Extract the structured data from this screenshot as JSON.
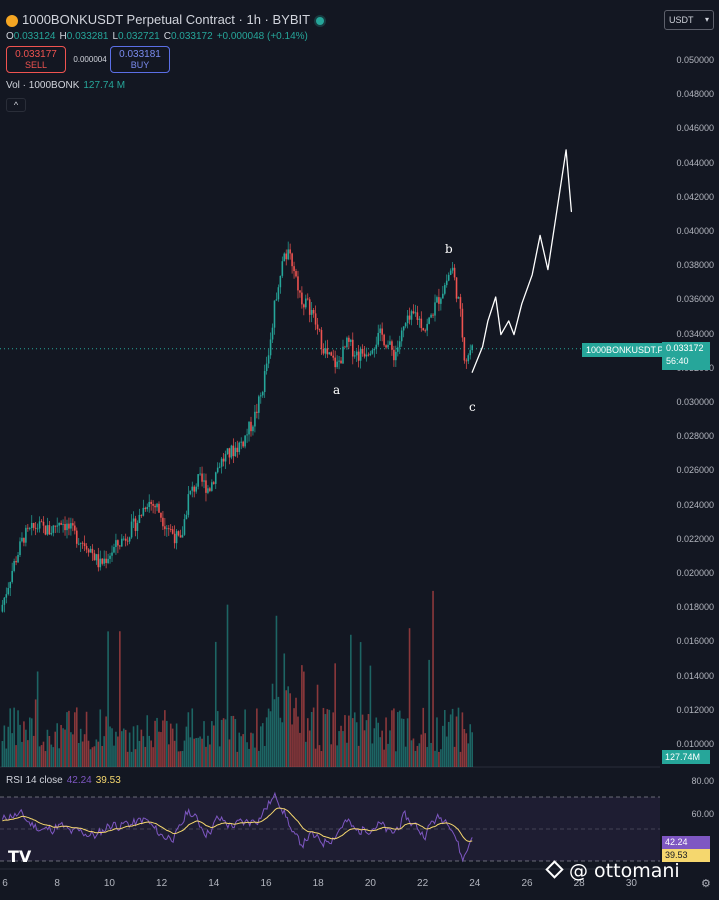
{
  "header": {
    "title": "1000BONKUSDT Perpetual Contract · 1h · BYBIT",
    "ohlc": [
      {
        "k": "O",
        "v": "0.033124"
      },
      {
        "k": "H",
        "v": "0.033281"
      },
      {
        "k": "L",
        "v": "0.032721"
      },
      {
        "k": "C",
        "v": "0.033172"
      },
      {
        "k": "",
        "v": "+0.000048 (+0.14%)"
      }
    ],
    "sell_price": "0.033177",
    "sell_label": "SELL",
    "spread": "0.000004",
    "buy_price": "0.033181",
    "buy_label": "BUY",
    "volume_label": "Vol · 1000BONK",
    "volume_value": "127.74 M",
    "collapse_icon": "chevron-up-icon"
  },
  "currency": {
    "label": "USDT",
    "icon": "chevron-down-icon"
  },
  "price_axis": {
    "labels": [
      "0.050000",
      "0.048000",
      "0.046000",
      "0.044000",
      "0.042000",
      "0.040000",
      "0.038000",
      "0.036000",
      "0.034000",
      "0.032000",
      "0.030000",
      "0.028000",
      "0.026000",
      "0.024000",
      "0.022000",
      "0.020000",
      "0.018000",
      "0.016000",
      "0.014000",
      "0.012000",
      "0.010000"
    ],
    "symbol_tag": "1000BONKUSDT.P",
    "current_price": "0.033172",
    "countdown": "56:40",
    "volume_tag": "127.74M"
  },
  "rsi": {
    "label": "RSI 14 close",
    "value_rsi": "42.24",
    "value_ma": "39.53",
    "axis_labels": [
      "80.00",
      "60.00"
    ],
    "rsi_color": "#7e57c2",
    "ma_color": "#f5d76e"
  },
  "time_axis": {
    "labels": [
      "6",
      "8",
      "10",
      "12",
      "14",
      "16",
      "18",
      "20",
      "22",
      "24",
      "26",
      "28",
      "30"
    ]
  },
  "annotations": {
    "a": "a",
    "b": "b",
    "c": "c"
  },
  "watermark": {
    "logo": "TV",
    "text": "@ ottomani"
  },
  "colors": {
    "up": "#26a69a",
    "down": "#ef5350",
    "background": "#131722"
  },
  "chart_data": {
    "type": "candlestick",
    "interval": "1h",
    "symbol": "1000BONKUSDT",
    "ylim": [
      0.01,
      0.05
    ],
    "x_range": [
      6,
      30
    ],
    "price_path": [
      [
        5.9,
        0.0178
      ],
      [
        6.4,
        0.0205
      ],
      [
        6.8,
        0.0222
      ],
      [
        7.3,
        0.0228
      ],
      [
        7.8,
        0.0225
      ],
      [
        8.2,
        0.0232
      ],
      [
        8.8,
        0.0222
      ],
      [
        9.3,
        0.0216
      ],
      [
        9.7,
        0.0205
      ],
      [
        10.2,
        0.0214
      ],
      [
        10.7,
        0.0222
      ],
      [
        11.2,
        0.0232
      ],
      [
        11.5,
        0.0243
      ],
      [
        11.9,
        0.0239
      ],
      [
        12.2,
        0.023
      ],
      [
        12.5,
        0.0224
      ],
      [
        12.8,
        0.0218
      ],
      [
        13.1,
        0.0245
      ],
      [
        13.5,
        0.0255
      ],
      [
        13.9,
        0.025
      ],
      [
        14.3,
        0.0265
      ],
      [
        14.8,
        0.0272
      ],
      [
        15.2,
        0.0278
      ],
      [
        15.6,
        0.029
      ],
      [
        15.9,
        0.0305
      ],
      [
        16.2,
        0.0332
      ],
      [
        16.5,
        0.0368
      ],
      [
        16.8,
        0.0388
      ],
      [
        17.1,
        0.0382
      ],
      [
        17.4,
        0.0362
      ],
      [
        17.8,
        0.0355
      ],
      [
        18.1,
        0.034
      ],
      [
        18.4,
        0.0328
      ],
      [
        18.8,
        0.0322
      ],
      [
        19.2,
        0.0335
      ],
      [
        19.6,
        0.0328
      ],
      [
        20.0,
        0.0332
      ],
      [
        20.5,
        0.034
      ],
      [
        21.0,
        0.0328
      ],
      [
        21.4,
        0.0345
      ],
      [
        21.8,
        0.0352
      ],
      [
        22.2,
        0.0343
      ],
      [
        22.5,
        0.0355
      ],
      [
        22.9,
        0.0368
      ],
      [
        23.2,
        0.038
      ],
      [
        23.5,
        0.0355
      ],
      [
        23.7,
        0.0325
      ],
      [
        23.9,
        0.0331
      ]
    ],
    "drawn_projection": [
      [
        23.9,
        0.0318
      ],
      [
        24.3,
        0.0333
      ],
      [
        24.5,
        0.0348
      ],
      [
        24.8,
        0.0362
      ],
      [
        25.0,
        0.034
      ],
      [
        25.3,
        0.0348
      ],
      [
        25.5,
        0.034
      ],
      [
        25.8,
        0.0358
      ],
      [
        26.2,
        0.0375
      ],
      [
        26.5,
        0.0398
      ],
      [
        26.8,
        0.0378
      ],
      [
        27.1,
        0.0408
      ],
      [
        27.4,
        0.0438
      ],
      [
        27.5,
        0.0448
      ],
      [
        27.7,
        0.0412
      ]
    ],
    "wave_labels": [
      {
        "label": "a",
        "x": 18.8,
        "y": 0.0307
      },
      {
        "label": "b",
        "x": 23.0,
        "y": 0.0392
      },
      {
        "label": "c",
        "x": 23.9,
        "y": 0.03
      }
    ],
    "last_price": 0.033172,
    "volume_last": "127.74M",
    "rsi": {
      "period": 14,
      "source": "close",
      "value": 42.24,
      "ma": 39.53,
      "ylim": [
        30,
        90
      ],
      "bands": [
        70,
        50,
        30
      ]
    }
  }
}
